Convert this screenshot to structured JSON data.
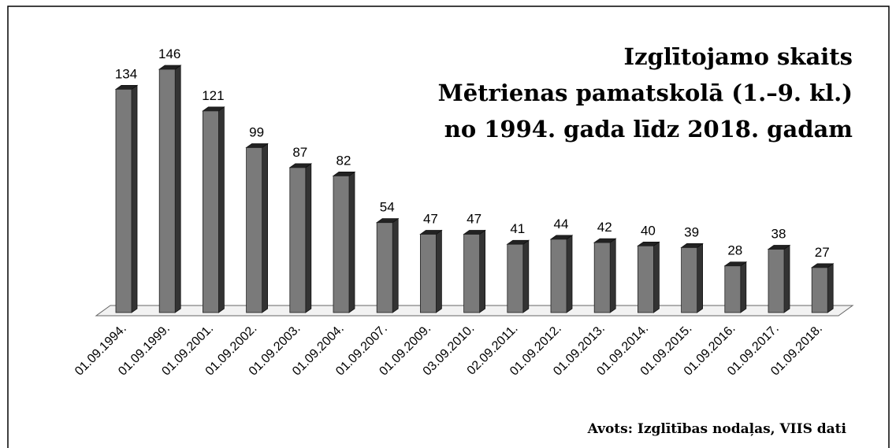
{
  "chart_data": {
    "type": "bar3d",
    "title_lines": [
      "Izglītojamo skaits",
      "Mētrienas pamatskolā (1.–9. kl.)",
      "no 1994. gada līdz 2018. gadam"
    ],
    "source": "Avots: Izglītības nodaļas, VIIS dati",
    "categories": [
      "01.09.1994.",
      "01.09.1999.",
      "01.09.2001.",
      "01.09.2002.",
      "01.09.2003.",
      "01.09.2004.",
      "01.09.2007.",
      "01.09.2009.",
      "03.09.2010.",
      "02.09.2011.",
      "01.09.2012.",
      "01.09.2013.",
      "01.09.2014.",
      "01.09.2015.",
      "01.09.2016.",
      "01.09.2017.",
      "01.09.2018."
    ],
    "values": [
      134,
      146,
      121,
      99,
      87,
      82,
      54,
      47,
      47,
      41,
      44,
      42,
      40,
      39,
      28,
      38,
      27
    ],
    "color": "#7a7a7a"
  }
}
